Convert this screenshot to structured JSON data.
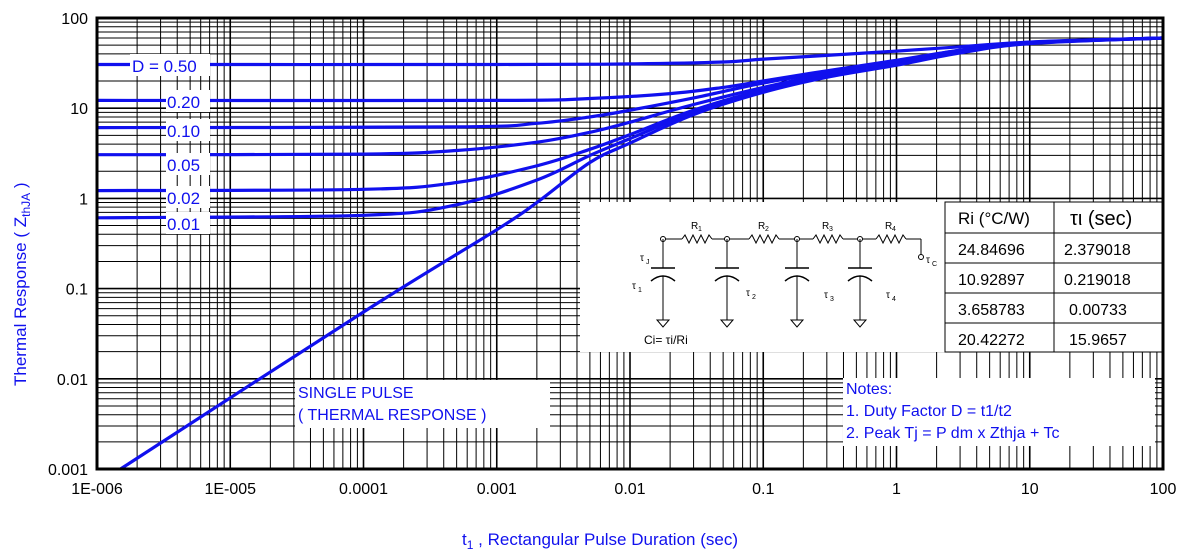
{
  "chart_data": {
    "type": "line",
    "x_scale": "log",
    "y_scale": "log",
    "xlim": [
      1e-06,
      100
    ],
    "ylim": [
      0.001,
      100
    ],
    "xlabel_main": "t",
    "xlabel_sub": "1",
    "xlabel_rest": " , Rectangular Pulse Duration (sec)",
    "ylabel_main": "Thermal Response ( Z",
    "ylabel_sub": "thJA",
    "ylabel_end": " )",
    "x_ticks": [
      {
        "value": 1e-06,
        "label": "1E-006"
      },
      {
        "value": 1e-05,
        "label": "1E-005"
      },
      {
        "value": 0.0001,
        "label": "0.0001"
      },
      {
        "value": 0.001,
        "label": "0.001"
      },
      {
        "value": 0.01,
        "label": "0.01"
      },
      {
        "value": 0.1,
        "label": "0.1"
      },
      {
        "value": 1,
        "label": "1"
      },
      {
        "value": 10,
        "label": "10"
      },
      {
        "value": 100,
        "label": "100"
      }
    ],
    "y_ticks": [
      {
        "value": 0.001,
        "label": "0.001"
      },
      {
        "value": 0.01,
        "label": "0.01"
      },
      {
        "value": 0.1,
        "label": "0.1"
      },
      {
        "value": 1,
        "label": "1"
      },
      {
        "value": 10,
        "label": "10"
      },
      {
        "value": 100,
        "label": "100"
      }
    ],
    "grid": true,
    "series": [
      {
        "name": "D = 0.50",
        "label": "D = 0.50",
        "x": [
          1e-06,
          0.001,
          0.01,
          0.05,
          0.1,
          0.3,
          1,
          3,
          10,
          100
        ],
        "y": [
          30.5,
          30.5,
          31,
          32.5,
          35,
          38.5,
          43,
          48,
          54,
          60
        ]
      },
      {
        "name": "0.20",
        "label": "0.20",
        "x": [
          1e-06,
          0.001,
          0.005,
          0.02,
          0.05,
          0.1,
          0.3,
          1,
          3,
          10,
          100
        ],
        "y": [
          12.2,
          12.2,
          12.8,
          14.5,
          17,
          20,
          26,
          34,
          44,
          54,
          60
        ]
      },
      {
        "name": "0.10",
        "label": "0.10",
        "x": [
          1e-06,
          0.0005,
          0.002,
          0.005,
          0.01,
          0.03,
          0.1,
          0.3,
          1,
          3,
          10,
          100
        ],
        "y": [
          6.1,
          6.2,
          6.8,
          8,
          9.5,
          13,
          19,
          25,
          33,
          44,
          53,
          60
        ]
      },
      {
        "name": "0.05",
        "label": "0.05",
        "x": [
          1e-06,
          0.0001,
          0.0005,
          0.002,
          0.005,
          0.01,
          0.03,
          0.1,
          0.3,
          1,
          3,
          10,
          100
        ],
        "y": [
          3.05,
          3.1,
          3.4,
          4.2,
          5.4,
          7,
          11,
          17,
          24,
          32,
          43,
          53,
          60
        ]
      },
      {
        "name": "0.02",
        "label": "0.02",
        "x": [
          1e-06,
          0.0001,
          0.0005,
          0.002,
          0.005,
          0.01,
          0.03,
          0.1,
          0.3,
          1,
          3,
          10,
          100
        ],
        "y": [
          1.22,
          1.26,
          1.5,
          2.3,
          3.5,
          5.1,
          9.5,
          16,
          23,
          31,
          42,
          53,
          60
        ]
      },
      {
        "name": "0.01",
        "label": "0.01",
        "x": [
          1e-06,
          0.0001,
          0.0005,
          0.002,
          0.005,
          0.01,
          0.03,
          0.1,
          0.3,
          1,
          3,
          10,
          100
        ],
        "y": [
          0.61,
          0.65,
          0.85,
          1.6,
          3.0,
          4.6,
          9,
          15.5,
          22.5,
          30.5,
          41.5,
          52.5,
          60
        ]
      },
      {
        "name": "SINGLE PULSE",
        "label": "",
        "x": [
          1.5e-06,
          0.0001,
          0.001,
          0.002,
          0.005,
          0.01,
          0.03,
          0.1,
          0.3,
          1,
          3,
          10,
          100
        ],
        "y": [
          0.001,
          0.055,
          0.45,
          0.9,
          2.5,
          4.1,
          8.5,
          15,
          22,
          30,
          41,
          52,
          60
        ]
      }
    ],
    "annotations": {
      "single_pulse": [
        "SINGLE PULSE",
        "( THERMAL RESPONSE )"
      ],
      "notes": [
        "Notes:",
        "1. Duty Factor D = t1/t2",
        "2. Peak Tj = P dm x Zthja + Tc"
      ]
    },
    "rc_table": {
      "headers": [
        "Ri (°C/W)",
        "τι (sec)"
      ],
      "rows": [
        [
          "24.84696",
          "2.379018"
        ],
        [
          "10.92897",
          "0.219018"
        ],
        [
          "3.658783",
          "0.00733"
        ],
        [
          "20.42272",
          "15.9657"
        ]
      ]
    },
    "circuit": {
      "r_label": "R",
      "r_subs": [
        "1",
        "2",
        "3",
        "4"
      ],
      "tau": "τ",
      "tau_subs": [
        "1",
        "2",
        "3",
        "4"
      ],
      "tau_j_sub": "J",
      "tau_c_sub": "C",
      "ci_formula": "Ci= τi/Ri"
    },
    "colors": {
      "curve": "#1010ee",
      "grid": "#000000"
    }
  }
}
